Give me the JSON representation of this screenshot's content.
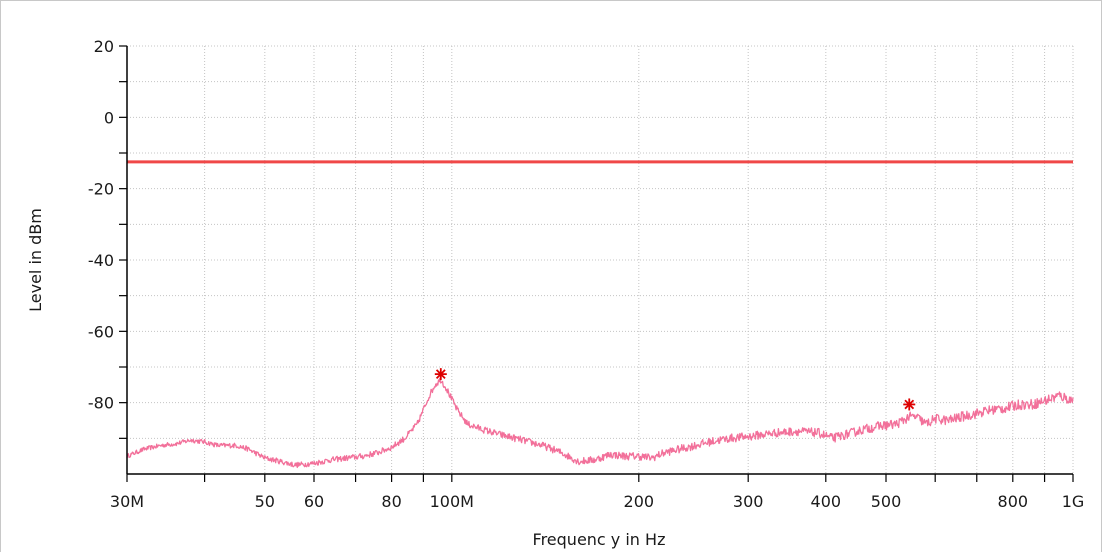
{
  "chart_data": {
    "type": "line",
    "title": "",
    "xlabel": "Frequenc y in Hz",
    "ylabel": "Level in dBm",
    "x_scale": "log",
    "xlim": [
      30000000,
      1000000000
    ],
    "ylim": [
      -100,
      20
    ],
    "grid": true,
    "x_ticks": [
      {
        "value": 30000000,
        "label": "30M"
      },
      {
        "value": 50000000,
        "label": "50"
      },
      {
        "value": 60000000,
        "label": "60"
      },
      {
        "value": 80000000,
        "label": "80"
      },
      {
        "value": 100000000,
        "label": "100M"
      },
      {
        "value": 200000000,
        "label": "200"
      },
      {
        "value": 300000000,
        "label": "300"
      },
      {
        "value": 400000000,
        "label": "400"
      },
      {
        "value": 500000000,
        "label": "500"
      },
      {
        "value": 800000000,
        "label": "800"
      },
      {
        "value": 1000000000,
        "label": "1G"
      }
    ],
    "y_ticks": [
      {
        "value": 20,
        "label": "20"
      },
      {
        "value": 0,
        "label": "0"
      },
      {
        "value": -20,
        "label": "-20"
      },
      {
        "value": -40,
        "label": "-40"
      },
      {
        "value": -60,
        "label": "-60"
      },
      {
        "value": -80,
        "label": "-80"
      }
    ],
    "colors": {
      "limit": "#f04848",
      "trace": "#f2709a",
      "marker": "#dd0000",
      "grid": "#c4c4c4",
      "axis": "#000000"
    },
    "limit_line": {
      "value": -12.5
    },
    "series": [
      {
        "x": [
          30000000,
          32000000,
          34000000,
          36000000,
          38000000,
          40000000,
          42000000,
          45000000,
          47000000,
          50000000,
          53000000,
          56000000,
          60000000,
          64000000,
          68000000,
          72000000,
          76000000,
          80000000,
          84000000,
          88000000,
          90000000,
          92000000,
          94000000,
          96000000,
          98000000,
          102000000,
          106000000,
          112000000,
          120000000,
          130000000,
          140000000,
          150000000,
          160000000,
          170000000,
          180000000,
          190000000,
          200000000,
          210000000,
          220000000,
          240000000,
          260000000,
          280000000,
          300000000,
          330000000,
          360000000,
          390000000,
          410000000,
          430000000,
          460000000,
          490000000,
          520000000,
          545000000,
          560000000,
          580000000,
          600000000,
          630000000,
          660000000,
          700000000,
          740000000,
          780000000,
          820000000,
          860000000,
          900000000,
          950000000,
          1000000000
        ],
        "y": [
          -95,
          -93,
          -92,
          -91.5,
          -90.5,
          -91,
          -92,
          -92,
          -93,
          -95.5,
          -96.5,
          -97.5,
          -97,
          -96,
          -95.5,
          -95,
          -94,
          -92.5,
          -90,
          -86,
          -82,
          -78,
          -75,
          -73.5,
          -76,
          -82,
          -86,
          -87.5,
          -89,
          -90.5,
          -92,
          -94,
          -96.5,
          -96,
          -94.5,
          -95,
          -95,
          -95.5,
          -94,
          -92.5,
          -91,
          -90,
          -89.5,
          -88.5,
          -88,
          -88.5,
          -90,
          -89,
          -87.5,
          -86.5,
          -86,
          -84,
          -84,
          -86,
          -84.5,
          -85,
          -84,
          -83,
          -82,
          -81.5,
          -80.5,
          -80.5,
          -79.5,
          -78,
          -79.5
        ]
      }
    ],
    "markers": [
      {
        "x": 96000000,
        "y": -72
      },
      {
        "x": 545000000,
        "y": -80.5
      }
    ]
  }
}
